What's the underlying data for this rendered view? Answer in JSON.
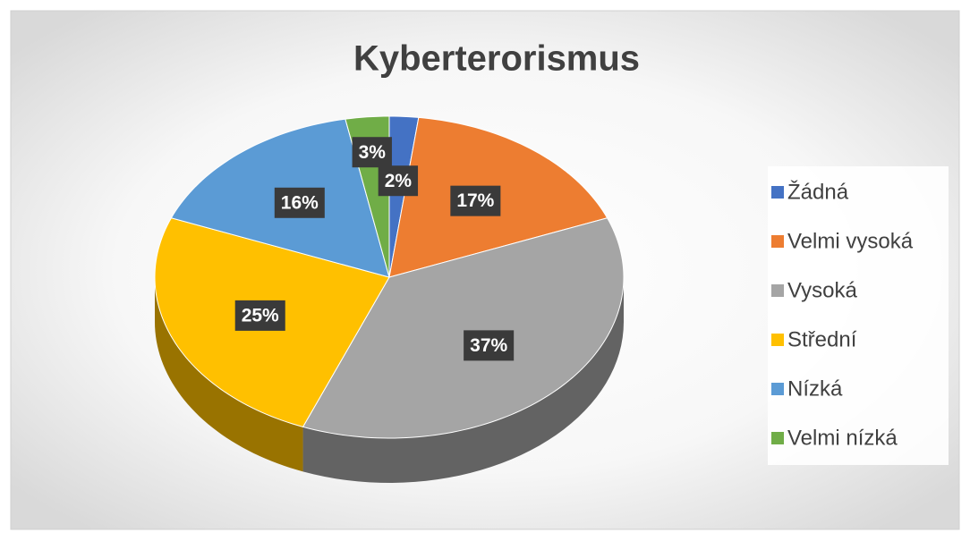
{
  "chart_data": {
    "type": "pie",
    "title": "Kyberterorismus",
    "categories": [
      "Žádná",
      "Velmi vysoká",
      "Vysoká",
      "Střední",
      "Nízká",
      "Velmi nízká"
    ],
    "values": [
      2,
      17,
      37,
      25,
      16,
      3
    ],
    "value_labels": [
      "2%",
      "17%",
      "37%",
      "25%",
      "16%",
      "3%"
    ],
    "colors": [
      "#4472c4",
      "#ed7d31",
      "#a5a5a5",
      "#ffc000",
      "#5b9bd5",
      "#70ad47"
    ],
    "legend": "right"
  }
}
